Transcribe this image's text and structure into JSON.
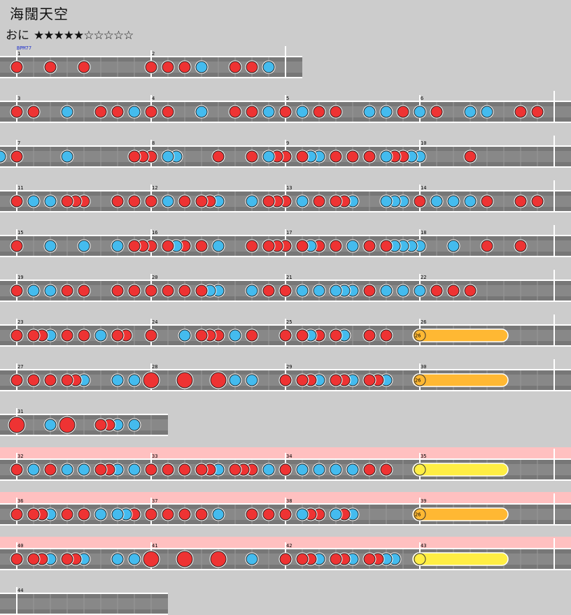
{
  "song": {
    "title": "海闊天空",
    "difficulty_label": "おに",
    "stars": "★★★★★☆☆☆☆☆",
    "bpm": "BPM77"
  },
  "colors": {
    "don": "#ee3333",
    "ka": "#44bbee",
    "roll": "#ffb833",
    "balloon": "#ffee44",
    "lane": "#777777",
    "gogo": "#ffc0c0"
  },
  "rows": [
    {
      "measures": [
        "1",
        "2"
      ],
      "gogo": false,
      "notes": [
        {
          "type": "don"
        },
        {
          "type": "don"
        },
        {
          "type": "don"
        },
        {
          "type": "don"
        },
        {
          "type": "don"
        },
        {
          "type": "don"
        },
        {
          "type": "ka"
        },
        {
          "type": "don"
        },
        {
          "type": "don"
        },
        {
          "type": "ka"
        }
      ]
    },
    {
      "measures": [
        "3",
        "4",
        "5",
        "6"
      ],
      "gogo": false,
      "notes": [
        {
          "type": "don"
        },
        {
          "type": "don"
        },
        {
          "type": "ka"
        },
        {
          "type": "don"
        },
        {
          "type": "don"
        },
        {
          "type": "ka"
        },
        {
          "type": "don"
        },
        {
          "type": "don"
        },
        {
          "type": "ka"
        },
        {
          "type": "don"
        },
        {
          "type": "don"
        },
        {
          "type": "ka"
        },
        {
          "type": "don"
        },
        {
          "type": "ka"
        },
        {
          "type": "don"
        },
        {
          "type": "don"
        },
        {
          "type": "ka"
        },
        {
          "type": "ka"
        },
        {
          "type": "don"
        },
        {
          "type": "ka"
        },
        {
          "type": "don"
        },
        {
          "type": "ka"
        },
        {
          "type": "ka"
        },
        {
          "type": "don"
        },
        {
          "type": "don"
        }
      ]
    },
    {
      "measures": [
        "7",
        "8",
        "9",
        "10"
      ],
      "gogo": false,
      "notes": [
        {
          "type": "don"
        },
        {
          "type": "ka"
        },
        {
          "type": "don"
        },
        {
          "type": "don"
        },
        {
          "type": "don"
        },
        {
          "type": "ka"
        },
        {
          "type": "ka"
        },
        {
          "type": "don"
        },
        {
          "type": "don"
        },
        {
          "type": "ka"
        },
        {
          "type": "don"
        },
        {
          "type": "don"
        },
        {
          "type": "don"
        },
        {
          "type": "ka"
        },
        {
          "type": "ka"
        },
        {
          "type": "don"
        },
        {
          "type": "don"
        },
        {
          "type": "don"
        },
        {
          "type": "ka"
        },
        {
          "type": "don"
        },
        {
          "type": "don"
        },
        {
          "type": "ka"
        },
        {
          "type": "ka"
        },
        {
          "type": "don"
        },
        {
          "type": "ka"
        },
        {
          "type": "don"
        },
        {
          "type": "don"
        }
      ]
    },
    {
      "measures": [
        "11",
        "12",
        "13",
        "14"
      ],
      "gogo": false,
      "notes": [
        {
          "type": "don"
        },
        {
          "type": "ka"
        },
        {
          "type": "ka"
        },
        {
          "type": "don"
        },
        {
          "type": "don"
        },
        {
          "type": "don"
        },
        {
          "type": "don"
        },
        {
          "type": "don"
        },
        {
          "type": "don"
        },
        {
          "type": "ka"
        },
        {
          "type": "don"
        },
        {
          "type": "don"
        },
        {
          "type": "don"
        },
        {
          "type": "ka"
        },
        {
          "type": "ka"
        },
        {
          "type": "don"
        },
        {
          "type": "don"
        },
        {
          "type": "don"
        },
        {
          "type": "ka"
        },
        {
          "type": "don"
        },
        {
          "type": "don"
        },
        {
          "type": "don"
        },
        {
          "type": "ka"
        },
        {
          "type": "ka"
        },
        {
          "type": "ka"
        },
        {
          "type": "ka"
        },
        {
          "type": "don"
        },
        {
          "type": "ka"
        },
        {
          "type": "ka"
        },
        {
          "type": "ka"
        },
        {
          "type": "don"
        },
        {
          "type": "don"
        },
        {
          "type": "don"
        }
      ]
    },
    {
      "measures": [
        "15",
        "16",
        "17",
        "18"
      ],
      "gogo": false,
      "notes": [
        {
          "type": "don"
        },
        {
          "type": "ka"
        },
        {
          "type": "ka"
        },
        {
          "type": "ka"
        },
        {
          "type": "don"
        },
        {
          "type": "don"
        },
        {
          "type": "don"
        },
        {
          "type": "don"
        },
        {
          "type": "ka"
        },
        {
          "type": "don"
        },
        {
          "type": "don"
        },
        {
          "type": "ka"
        },
        {
          "type": "don"
        },
        {
          "type": "don"
        },
        {
          "type": "don"
        },
        {
          "type": "don"
        },
        {
          "type": "don"
        },
        {
          "type": "ka"
        },
        {
          "type": "don"
        },
        {
          "type": "don"
        },
        {
          "type": "ka"
        },
        {
          "type": "don"
        },
        {
          "type": "don"
        },
        {
          "type": "ka"
        },
        {
          "type": "ka"
        },
        {
          "type": "ka"
        },
        {
          "type": "ka"
        },
        {
          "type": "ka"
        },
        {
          "type": "don"
        },
        {
          "type": "don"
        }
      ]
    },
    {
      "measures": [
        "19",
        "20",
        "21",
        "22"
      ],
      "gogo": false,
      "notes": [
        {
          "type": "don"
        },
        {
          "type": "ka"
        },
        {
          "type": "ka"
        },
        {
          "type": "don"
        },
        {
          "type": "don"
        },
        {
          "type": "don"
        },
        {
          "type": "don"
        },
        {
          "type": "don"
        },
        {
          "type": "don"
        },
        {
          "type": "don"
        },
        {
          "type": "don"
        },
        {
          "type": "ka"
        },
        {
          "type": "ka"
        },
        {
          "type": "ka"
        },
        {
          "type": "don"
        },
        {
          "type": "don"
        },
        {
          "type": "ka"
        },
        {
          "type": "ka"
        },
        {
          "type": "ka"
        },
        {
          "type": "ka"
        },
        {
          "type": "ka"
        },
        {
          "type": "don"
        },
        {
          "type": "ka"
        },
        {
          "type": "ka"
        },
        {
          "type": "ka"
        },
        {
          "type": "don"
        },
        {
          "type": "don"
        },
        {
          "type": "don"
        }
      ]
    },
    {
      "measures": [
        "23",
        "24",
        "25",
        "26"
      ],
      "gogo": false,
      "notes": [
        {
          "type": "don"
        },
        {
          "type": "don"
        },
        {
          "type": "don"
        },
        {
          "type": "ka"
        },
        {
          "type": "don"
        },
        {
          "type": "don"
        },
        {
          "type": "ka"
        },
        {
          "type": "don"
        },
        {
          "type": "don"
        },
        {
          "type": "don"
        },
        {
          "type": "ka"
        },
        {
          "type": "don"
        },
        {
          "type": "don"
        },
        {
          "type": "don"
        },
        {
          "type": "ka"
        },
        {
          "type": "don"
        },
        {
          "type": "don"
        },
        {
          "type": "don"
        },
        {
          "type": "ka"
        },
        {
          "type": "don"
        },
        {
          "type": "don"
        },
        {
          "type": "ka"
        },
        {
          "type": "don"
        },
        {
          "type": "don"
        }
      ],
      "rolls": [
        {
          "label": "26"
        }
      ]
    },
    {
      "measures": [
        "27",
        "28",
        "29",
        "30"
      ],
      "gogo": false,
      "notes": [
        {
          "type": "don"
        },
        {
          "type": "don"
        },
        {
          "type": "don"
        },
        {
          "type": "don"
        },
        {
          "type": "don"
        },
        {
          "type": "ka"
        },
        {
          "type": "ka"
        },
        {
          "type": "ka"
        },
        {
          "type": "big-don"
        },
        {
          "type": "big-don"
        },
        {
          "type": "big-don"
        },
        {
          "type": "ka"
        },
        {
          "type": "ka"
        },
        {
          "type": "don"
        },
        {
          "type": "don"
        },
        {
          "type": "don"
        },
        {
          "type": "ka"
        },
        {
          "type": "don"
        },
        {
          "type": "don"
        },
        {
          "type": "ka"
        },
        {
          "type": "don"
        },
        {
          "type": "don"
        },
        {
          "type": "ka"
        }
      ],
      "rolls": [
        {
          "label": "26"
        }
      ]
    },
    {
      "measures": [
        "31"
      ],
      "gogo": false,
      "notes": [
        {
          "type": "big-don"
        },
        {
          "type": "ka"
        },
        {
          "type": "big-don"
        },
        {
          "type": "don"
        },
        {
          "type": "don"
        },
        {
          "type": "ka"
        },
        {
          "type": "ka"
        }
      ]
    },
    {
      "measures": [
        "32",
        "33",
        "34",
        "35"
      ],
      "gogo": true,
      "notes": [
        {
          "type": "don"
        },
        {
          "type": "ka"
        },
        {
          "type": "don"
        },
        {
          "type": "ka"
        },
        {
          "type": "ka"
        },
        {
          "type": "don"
        },
        {
          "type": "don"
        },
        {
          "type": "ka"
        },
        {
          "type": "ka"
        },
        {
          "type": "don"
        },
        {
          "type": "don"
        },
        {
          "type": "don"
        },
        {
          "type": "don"
        },
        {
          "type": "don"
        },
        {
          "type": "ka"
        },
        {
          "type": "don"
        },
        {
          "type": "don"
        },
        {
          "type": "don"
        },
        {
          "type": "ka"
        },
        {
          "type": "don"
        },
        {
          "type": "ka"
        },
        {
          "type": "ka"
        },
        {
          "type": "ka"
        },
        {
          "type": "ka"
        },
        {
          "type": "don"
        },
        {
          "type": "don"
        }
      ],
      "rolls": [
        {
          "label": ""
        }
      ]
    },
    {
      "measures": [
        "36",
        "37",
        "38",
        "39"
      ],
      "gogo": true,
      "notes": [
        {
          "type": "don"
        },
        {
          "type": "don"
        },
        {
          "type": "don"
        },
        {
          "type": "ka"
        },
        {
          "type": "don"
        },
        {
          "type": "don"
        },
        {
          "type": "ka"
        },
        {
          "type": "ka"
        },
        {
          "type": "ka"
        },
        {
          "type": "don"
        },
        {
          "type": "don"
        },
        {
          "type": "don"
        },
        {
          "type": "don"
        },
        {
          "type": "don"
        },
        {
          "type": "ka"
        },
        {
          "type": "don"
        },
        {
          "type": "don"
        },
        {
          "type": "don"
        },
        {
          "type": "ka"
        },
        {
          "type": "don"
        },
        {
          "type": "don"
        },
        {
          "type": "ka"
        },
        {
          "type": "don"
        },
        {
          "type": "ka"
        }
      ],
      "rolls": [
        {
          "label": "26"
        }
      ]
    },
    {
      "measures": [
        "40",
        "41",
        "42",
        "43"
      ],
      "gogo": true,
      "notes": [
        {
          "type": "don"
        },
        {
          "type": "don"
        },
        {
          "type": "don"
        },
        {
          "type": "ka"
        },
        {
          "type": "don"
        },
        {
          "type": "don"
        },
        {
          "type": "ka"
        },
        {
          "type": "ka"
        },
        {
          "type": "ka"
        },
        {
          "type": "big-don"
        },
        {
          "type": "big-don"
        },
        {
          "type": "big-don"
        },
        {
          "type": "ka"
        },
        {
          "type": "don"
        },
        {
          "type": "don"
        },
        {
          "type": "don"
        },
        {
          "type": "ka"
        },
        {
          "type": "don"
        },
        {
          "type": "don"
        },
        {
          "type": "ka"
        },
        {
          "type": "don"
        },
        {
          "type": "don"
        },
        {
          "type": "ka"
        },
        {
          "type": "ka"
        }
      ],
      "rolls": [
        {
          "label": ""
        }
      ]
    },
    {
      "measures": [
        "44"
      ],
      "gogo": false,
      "notes": []
    }
  ]
}
